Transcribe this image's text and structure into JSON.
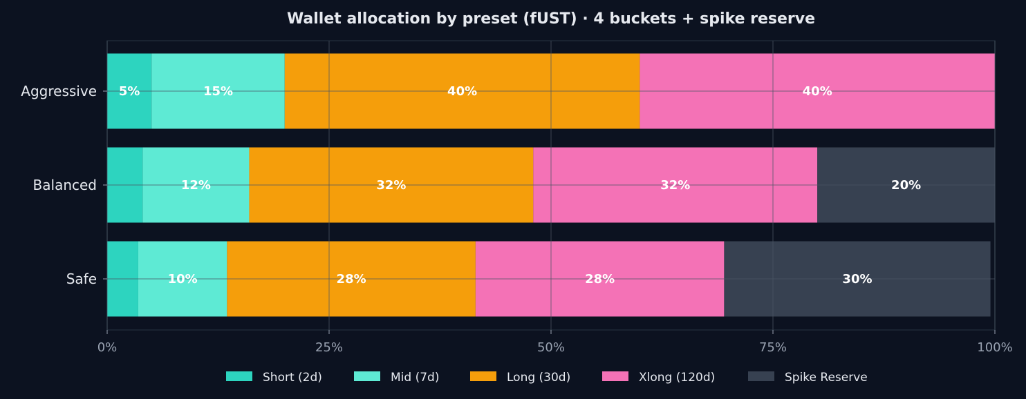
{
  "chart_data": {
    "type": "bar",
    "orientation": "horizontal",
    "stacked": true,
    "title": "Wallet allocation by preset (fUST) · 4 buckets + spike reserve",
    "xlabel": "",
    "ylabel": "",
    "categories": [
      "Aggressive",
      "Balanced",
      "Safe"
    ],
    "xlim": [
      0,
      100
    ],
    "x_ticks": [
      0,
      25,
      50,
      75,
      100
    ],
    "x_tick_labels": [
      "0%",
      "25%",
      "50%",
      "75%",
      "100%"
    ],
    "grid": true,
    "legend_position": "bottom",
    "series": [
      {
        "name": "Short (2d)",
        "color": "#2dd4bf",
        "values": [
          5,
          4,
          3.5
        ],
        "labels": [
          "5%",
          "",
          ""
        ]
      },
      {
        "name": "Mid (7d)",
        "color": "#5eead4",
        "values": [
          15,
          12,
          10
        ],
        "labels": [
          "15%",
          "12%",
          "10%"
        ]
      },
      {
        "name": "Long (30d)",
        "color": "#f59e0b",
        "values": [
          40,
          32,
          28
        ],
        "labels": [
          "40%",
          "32%",
          "28%"
        ]
      },
      {
        "name": "Xlong (120d)",
        "color": "#f472b6",
        "values": [
          40,
          32,
          28
        ],
        "labels": [
          "40%",
          "32%",
          "28%"
        ]
      },
      {
        "name": "Spike Reserve",
        "color": "#374151",
        "values": [
          0,
          20,
          30
        ],
        "labels": [
          "",
          "20%",
          "30%"
        ]
      }
    ]
  }
}
